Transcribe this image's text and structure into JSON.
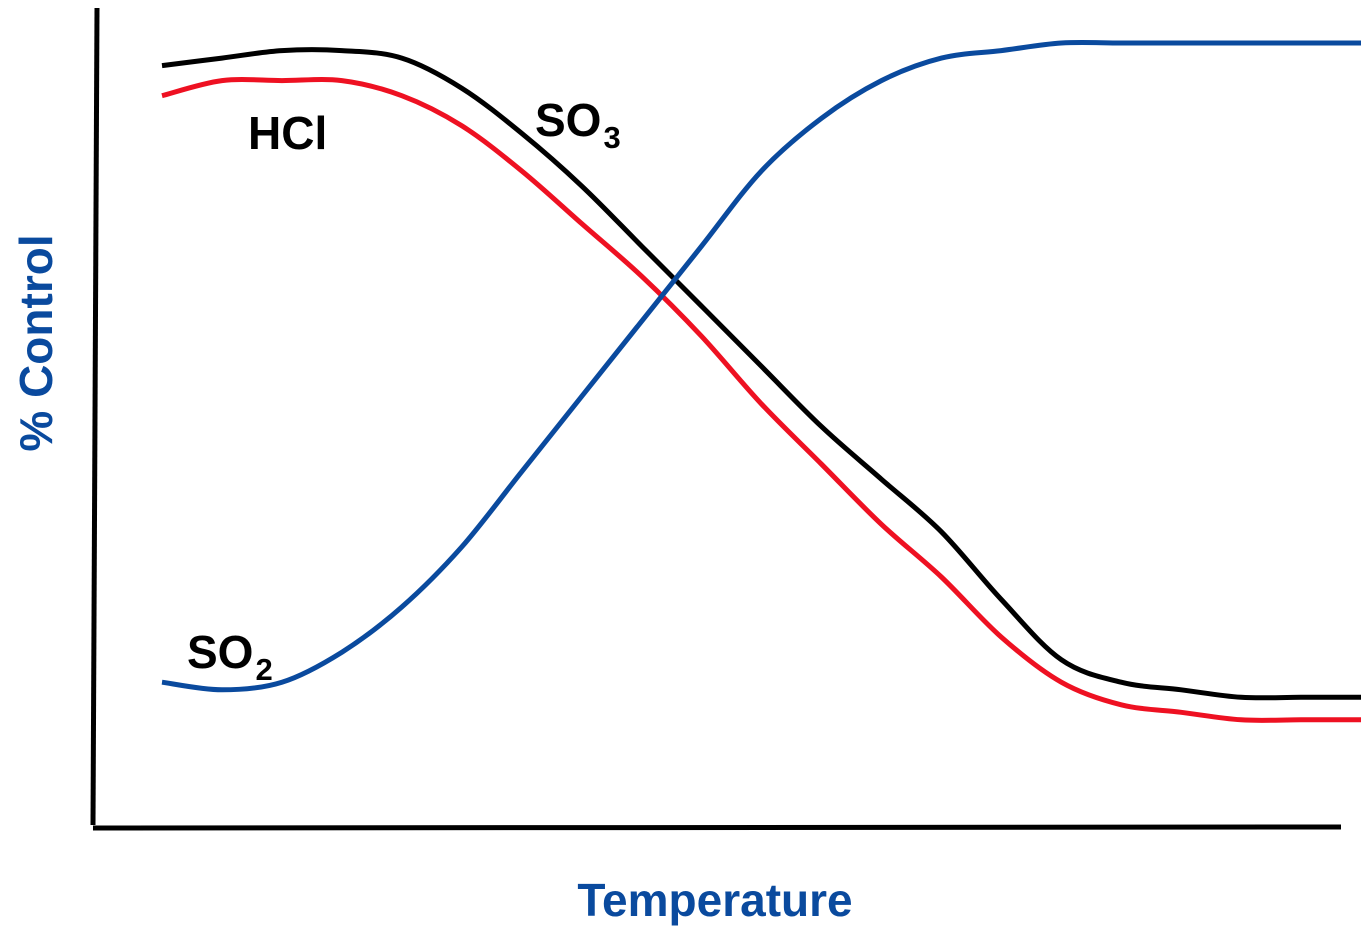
{
  "chart_data": {
    "type": "line",
    "xlabel": "Temperature",
    "ylabel": "% Control",
    "xlim": [
      0,
      100
    ],
    "ylim": [
      0,
      100
    ],
    "grid": false,
    "legend": "none",
    "series": [
      {
        "name": "SO3",
        "label_main": "SO",
        "label_sub": "3",
        "color": "#000000",
        "x": [
          0,
          5,
          10,
          15,
          20,
          25,
          30,
          35,
          40,
          45,
          50,
          55,
          60,
          65,
          70,
          75,
          80,
          85,
          90,
          95,
          100
        ],
        "y": [
          95,
          96,
          97,
          97,
          96,
          92,
          86,
          79,
          71,
          63,
          55,
          47,
          40,
          33,
          24,
          16,
          13,
          12,
          11,
          11,
          11
        ]
      },
      {
        "name": "HCl",
        "label_main": "HCl",
        "label_sub": "",
        "color": "#ee1122",
        "x": [
          0,
          5,
          10,
          15,
          20,
          25,
          30,
          35,
          40,
          45,
          50,
          55,
          60,
          65,
          70,
          75,
          80,
          85,
          90,
          95,
          100
        ],
        "y": [
          91,
          93,
          93,
          93,
          91,
          87,
          81,
          74,
          67,
          59,
          50,
          42,
          34,
          27,
          19,
          13,
          10,
          9,
          8,
          8,
          8
        ]
      },
      {
        "name": "SO2",
        "label_main": "SO",
        "label_sub": "2",
        "color": "#0a4a9e",
        "x": [
          0,
          5,
          10,
          15,
          20,
          25,
          30,
          35,
          40,
          45,
          50,
          55,
          60,
          65,
          70,
          75,
          80,
          85,
          90,
          95,
          100
        ],
        "y": [
          13,
          12,
          13,
          17,
          23,
          31,
          41,
          51,
          61,
          71,
          81,
          88,
          93,
          96,
          97,
          98,
          98,
          98,
          98,
          98,
          98
        ]
      }
    ]
  },
  "colors": {
    "axis_line": "#000000",
    "axis_title": "#0a4a9e"
  }
}
